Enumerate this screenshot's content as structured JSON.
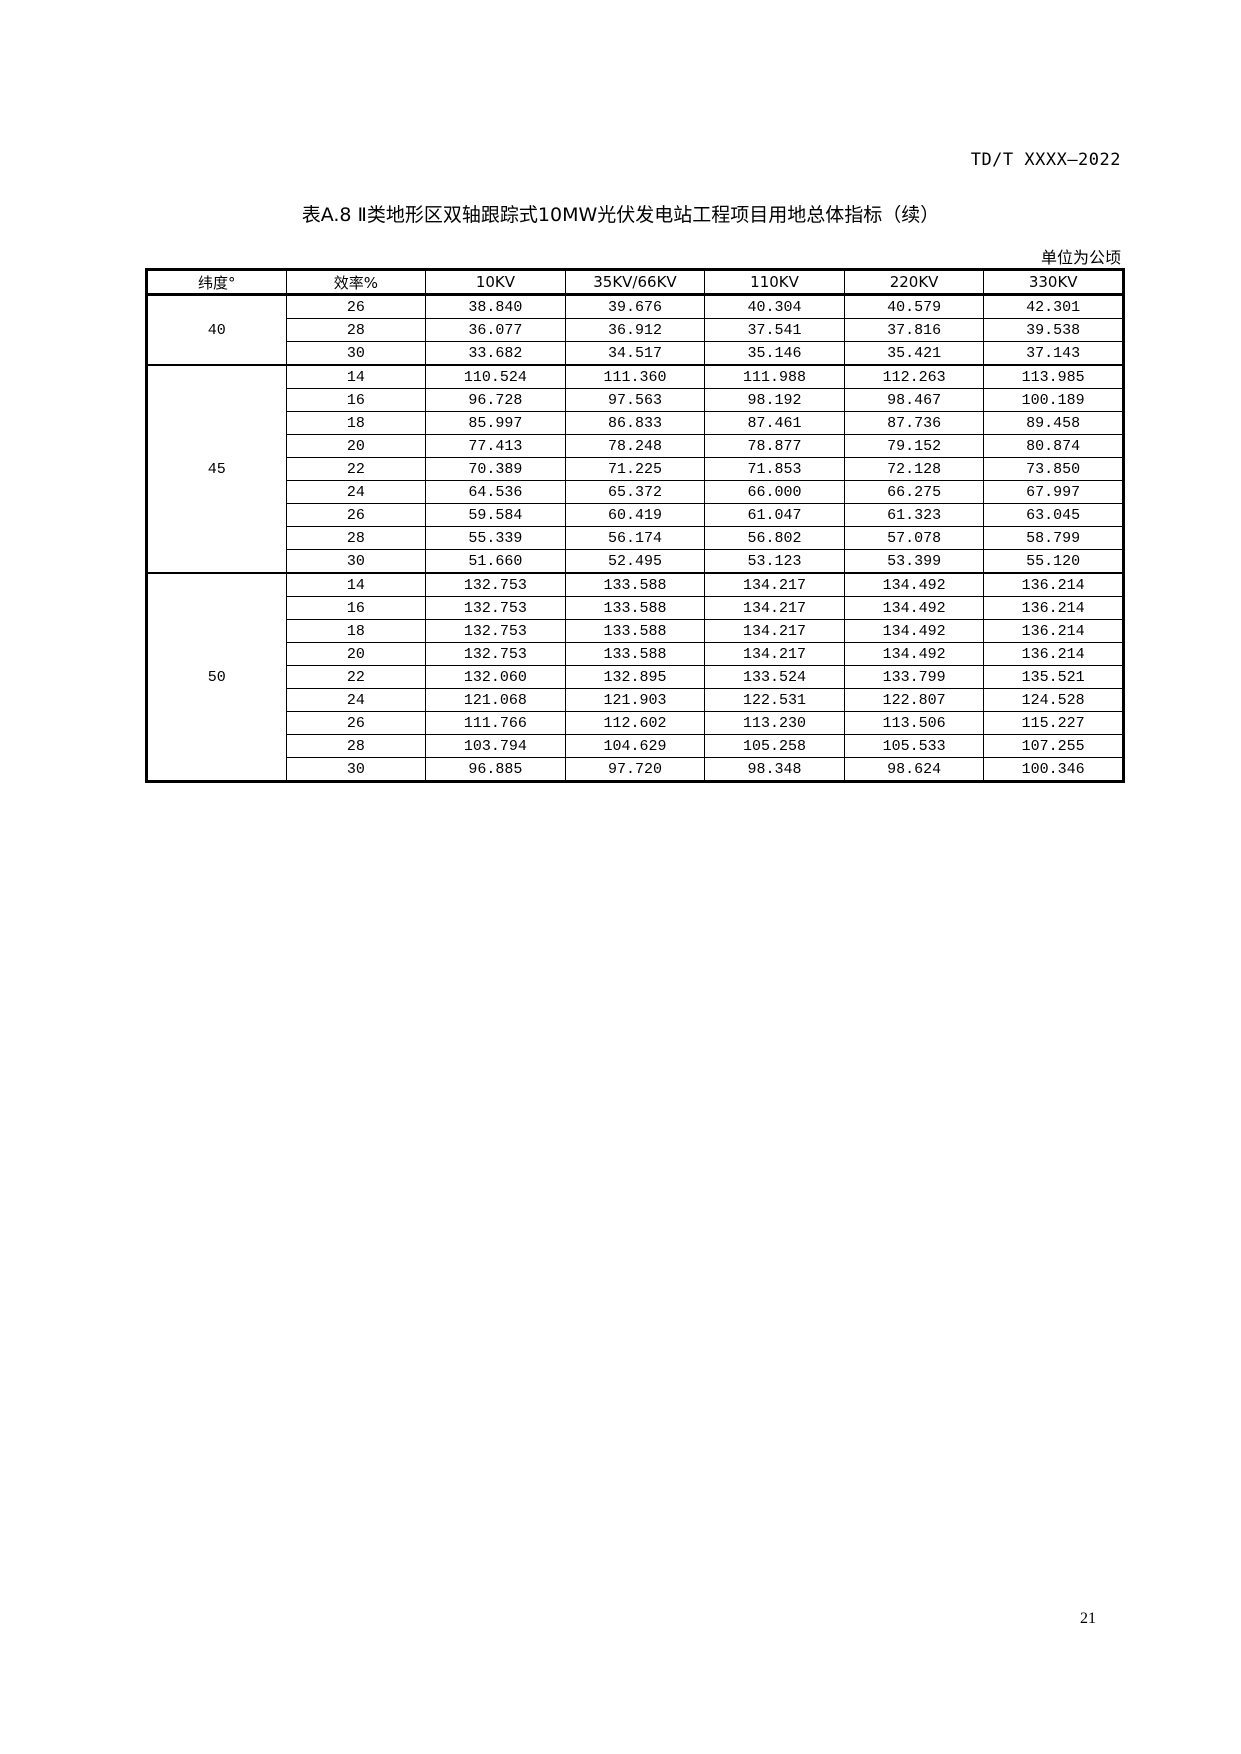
{
  "header": {
    "doc_code": "TD/T XXXX—2022"
  },
  "title": "表A.8 Ⅱ类地形区双轴跟踪式10MW光伏发电站工程项目用地总体指标（续）",
  "unit": "单位为公顷",
  "table": {
    "columns": [
      "纬度°",
      "效率%",
      "10KV",
      "35KV/66KV",
      "110KV",
      "220KV",
      "330KV"
    ],
    "groups": [
      {
        "latitude": "40",
        "rows": [
          [
            "26",
            "38.840",
            "39.676",
            "40.304",
            "40.579",
            "42.301"
          ],
          [
            "28",
            "36.077",
            "36.912",
            "37.541",
            "37.816",
            "39.538"
          ],
          [
            "30",
            "33.682",
            "34.517",
            "35.146",
            "35.421",
            "37.143"
          ]
        ]
      },
      {
        "latitude": "45",
        "rows": [
          [
            "14",
            "110.524",
            "111.360",
            "111.988",
            "112.263",
            "113.985"
          ],
          [
            "16",
            "96.728",
            "97.563",
            "98.192",
            "98.467",
            "100.189"
          ],
          [
            "18",
            "85.997",
            "86.833",
            "87.461",
            "87.736",
            "89.458"
          ],
          [
            "20",
            "77.413",
            "78.248",
            "78.877",
            "79.152",
            "80.874"
          ],
          [
            "22",
            "70.389",
            "71.225",
            "71.853",
            "72.128",
            "73.850"
          ],
          [
            "24",
            "64.536",
            "65.372",
            "66.000",
            "66.275",
            "67.997"
          ],
          [
            "26",
            "59.584",
            "60.419",
            "61.047",
            "61.323",
            "63.045"
          ],
          [
            "28",
            "55.339",
            "56.174",
            "56.802",
            "57.078",
            "58.799"
          ],
          [
            "30",
            "51.660",
            "52.495",
            "53.123",
            "53.399",
            "55.120"
          ]
        ]
      },
      {
        "latitude": "50",
        "rows": [
          [
            "14",
            "132.753",
            "133.588",
            "134.217",
            "134.492",
            "136.214"
          ],
          [
            "16",
            "132.753",
            "133.588",
            "134.217",
            "134.492",
            "136.214"
          ],
          [
            "18",
            "132.753",
            "133.588",
            "134.217",
            "134.492",
            "136.214"
          ],
          [
            "20",
            "132.753",
            "133.588",
            "134.217",
            "134.492",
            "136.214"
          ],
          [
            "22",
            "132.060",
            "132.895",
            "133.524",
            "133.799",
            "135.521"
          ],
          [
            "24",
            "121.068",
            "121.903",
            "122.531",
            "122.807",
            "124.528"
          ],
          [
            "26",
            "111.766",
            "112.602",
            "113.230",
            "113.506",
            "115.227"
          ],
          [
            "28",
            "103.794",
            "104.629",
            "105.258",
            "105.533",
            "107.255"
          ],
          [
            "30",
            "96.885",
            "97.720",
            "98.348",
            "98.624",
            "100.346"
          ]
        ]
      }
    ]
  },
  "footer": {
    "page_number": "21"
  }
}
